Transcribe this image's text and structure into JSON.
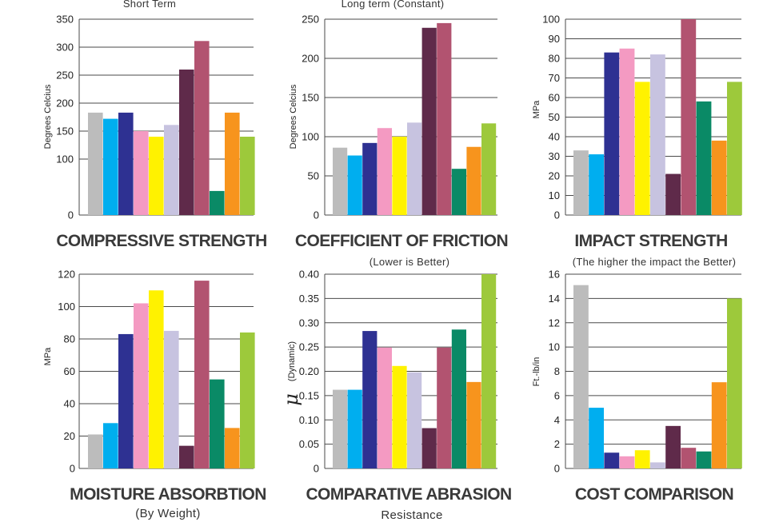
{
  "bar_colors": [
    "#bcbcbc",
    "#00aeef",
    "#2e3192",
    "#f49ac2",
    "#fff200",
    "#c7c3e0",
    "#5f2a4a",
    "#b25370",
    "#0a8a66",
    "#f7941d",
    "#9dc93b"
  ],
  "chart_data": [
    {
      "type": "bar",
      "title": "COMPRESSIVE STRENGTH",
      "subtitle_above": "Short Term",
      "ylabel": "Degrees Celcius",
      "ylim": [
        0,
        350
      ],
      "yticks": [
        0,
        100,
        150,
        200,
        250,
        300,
        350
      ],
      "values": [
        183,
        172,
        183,
        150,
        140,
        161,
        260,
        311,
        43,
        183,
        140
      ]
    },
    {
      "type": "bar",
      "title": "COEFFICIENT OF FRICTION",
      "subtitle_above": "Long term (Constant)",
      "ylabel": "Degrees Celcius",
      "ylim": [
        0,
        250
      ],
      "yticks": [
        0,
        50,
        100,
        150,
        200,
        250
      ],
      "values": [
        86,
        76,
        92,
        111,
        100,
        118,
        239,
        245,
        59,
        87,
        117
      ]
    },
    {
      "type": "bar",
      "title": "IMPACT STRENGTH",
      "ylabel": "MPa",
      "ylim": [
        0,
        100
      ],
      "yticks": [
        0,
        10,
        20,
        30,
        40,
        50,
        60,
        70,
        80,
        90,
        100
      ],
      "values": [
        33,
        31,
        83,
        85,
        68,
        82,
        21,
        100,
        58,
        38,
        68
      ]
    },
    {
      "type": "bar",
      "title": "MOISTURE ABSORBTION",
      "subtitle_below": "(By Weight)",
      "ylabel": "MPa",
      "ylim": [
        0,
        120
      ],
      "yticks": [
        0,
        20,
        40,
        60,
        80,
        100,
        120
      ],
      "values": [
        21,
        28,
        83,
        102,
        110,
        85,
        14,
        116,
        55,
        25,
        84
      ]
    },
    {
      "type": "bar",
      "title": "COMPARATIVE ABRASION",
      "subtitle_above": "(Lower is Better)",
      "subtitle_below": "Resistance",
      "ylabel": "(Dynamic)",
      "ylabel_symbol": "μ",
      "ylim": [
        0,
        0.4
      ],
      "yticks": [
        "0",
        "0.05",
        "0.10",
        "0.15",
        "0.20",
        "0.25",
        "0.30",
        "0.35",
        "0.40"
      ],
      "values": [
        0.162,
        0.162,
        0.283,
        0.249,
        0.211,
        0.198,
        0.083,
        0.249,
        0.286,
        0.178,
        0.4
      ]
    },
    {
      "type": "bar",
      "title": "COST COMPARISON",
      "subtitle_above": "(The higher the impact the Better)",
      "ylabel": "Ft.-lb/in",
      "ylim": [
        0,
        16
      ],
      "yticks": [
        0,
        2,
        4,
        6,
        8,
        10,
        12,
        14,
        16
      ],
      "values": [
        15.1,
        5.0,
        1.3,
        1.0,
        1.5,
        0.5,
        3.5,
        1.7,
        1.4,
        7.1,
        14.0
      ]
    }
  ]
}
